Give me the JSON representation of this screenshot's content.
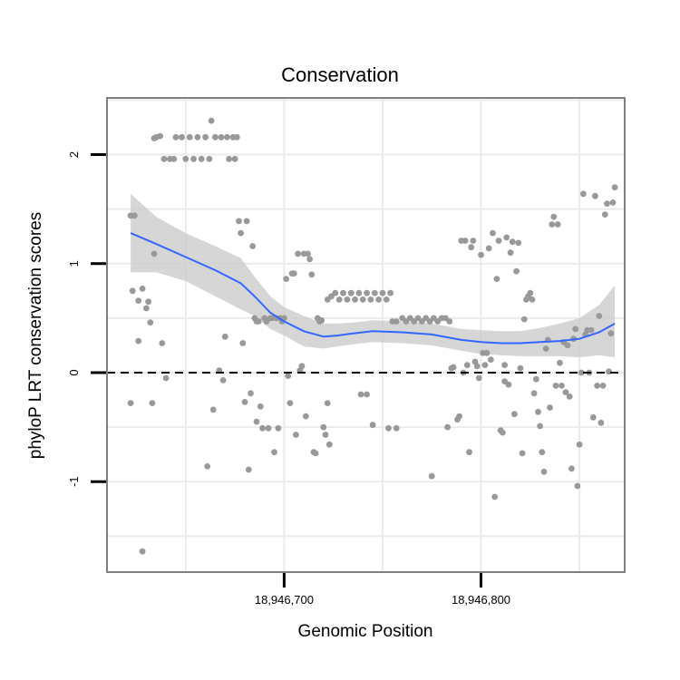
{
  "chart_data": {
    "type": "scatter",
    "title": "Conservation",
    "xlabel": "Genomic Position",
    "ylabel": "phyloP LRT conservation scores",
    "xlim": [
      18946610,
      18946873
    ],
    "ylim": [
      -1.83,
      2.52
    ],
    "x_ticks": [
      18946700,
      18946800
    ],
    "x_tick_labels": [
      "18,946,700",
      "18,946,800"
    ],
    "y_ticks": [
      -1,
      0,
      1,
      2
    ],
    "y_tick_labels": [
      "-1",
      "0",
      "1",
      "2"
    ],
    "reference_line": {
      "y": 0,
      "style": "dashed"
    },
    "grid": true,
    "colors": {
      "points": "#999999",
      "smooth": "#3366FF",
      "ribbon": "#cccccc",
      "frame": "#7f7f7f",
      "grid": "#ebebeb"
    },
    "points": [
      [
        18946622,
        1.44
      ],
      [
        18946624,
        1.44
      ],
      [
        18946622,
        -0.28
      ],
      [
        18946623,
        0.75
      ],
      [
        18946626,
        0.29
      ],
      [
        18946626,
        0.66
      ],
      [
        18946628,
        -1.64
      ],
      [
        18946628,
        0.77
      ],
      [
        18946630,
        0.59
      ],
      [
        18946631,
        0.65
      ],
      [
        18946632,
        0.46
      ],
      [
        18946633,
        -0.28
      ],
      [
        18946634,
        1.09
      ],
      [
        18946634,
        2.15
      ],
      [
        18946635,
        2.16
      ],
      [
        18946637,
        2.17
      ],
      [
        18946638,
        0.27
      ],
      [
        18946639,
        1.96
      ],
      [
        18946640,
        -0.05
      ],
      [
        18946642,
        1.96
      ],
      [
        18946644,
        1.96
      ],
      [
        18946645,
        2.16
      ],
      [
        18946648,
        2.16
      ],
      [
        18946650,
        1.96
      ],
      [
        18946652,
        2.16
      ],
      [
        18946654,
        1.96
      ],
      [
        18946656,
        2.16
      ],
      [
        18946658,
        1.96
      ],
      [
        18946660,
        2.16
      ],
      [
        18946661,
        -0.86
      ],
      [
        18946662,
        1.96
      ],
      [
        18946663,
        2.31
      ],
      [
        18946664,
        -0.34
      ],
      [
        18946665,
        2.16
      ],
      [
        18946667,
        0.02
      ],
      [
        18946668,
        2.16
      ],
      [
        18946669,
        -0.07
      ],
      [
        18946670,
        0.33
      ],
      [
        18946671,
        2.16
      ],
      [
        18946672,
        1.96
      ],
      [
        18946674,
        2.16
      ],
      [
        18946675,
        1.96
      ],
      [
        18946676,
        2.16
      ],
      [
        18946677,
        1.39
      ],
      [
        18946678,
        1.28
      ],
      [
        18946679,
        0.27
      ],
      [
        18946680,
        -0.27
      ],
      [
        18946681,
        1.39
      ],
      [
        18946682,
        -0.89
      ],
      [
        18946683,
        -0.19
      ],
      [
        18946684,
        1.16
      ],
      [
        18946685,
        0.5
      ],
      [
        18946686,
        0.47
      ],
      [
        18946686,
        -0.45
      ],
      [
        18946687,
        0.47
      ],
      [
        18946688,
        -0.31
      ],
      [
        18946689,
        -0.51
      ],
      [
        18946690,
        0.5
      ],
      [
        18946691,
        0.47
      ],
      [
        18946692,
        -0.51
      ],
      [
        18946693,
        0.5
      ],
      [
        18946694,
        0.5
      ],
      [
        18946695,
        -0.73
      ],
      [
        18946696,
        0.5
      ],
      [
        18946697,
        -0.51
      ],
      [
        18946698,
        0.5
      ],
      [
        18946699,
        0.47
      ],
      [
        18946700,
        0.5
      ],
      [
        18946701,
        0.86
      ],
      [
        18946702,
        -0.03
      ],
      [
        18946703,
        -0.28
      ],
      [
        18946704,
        0.91
      ],
      [
        18946705,
        0.91
      ],
      [
        18946706,
        -0.57
      ],
      [
        18946707,
        1.09
      ],
      [
        18946708,
        0.02
      ],
      [
        18946709,
        0.06
      ],
      [
        18946710,
        1.09
      ],
      [
        18946711,
        -0.4
      ],
      [
        18946712,
        1.09
      ],
      [
        18946713,
        1.04
      ],
      [
        18946714,
        0.9
      ],
      [
        18946715,
        -0.73
      ],
      [
        18946716,
        -0.74
      ],
      [
        18946717,
        0.5
      ],
      [
        18946718,
        0.47
      ],
      [
        18946719,
        0.48
      ],
      [
        18946720,
        -0.5
      ],
      [
        18946721,
        -0.57
      ],
      [
        18946722,
        -0.28
      ],
      [
        18946723,
        -0.66
      ],
      [
        18946722,
        0.67
      ],
      [
        18946724,
        0.7
      ],
      [
        18946726,
        0.73
      ],
      [
        18946728,
        0.67
      ],
      [
        18946730,
        0.73
      ],
      [
        18946732,
        0.67
      ],
      [
        18946734,
        0.73
      ],
      [
        18946736,
        0.67
      ],
      [
        18946738,
        0.73
      ],
      [
        18946739,
        -0.2
      ],
      [
        18946740,
        0.67
      ],
      [
        18946742,
        0.73
      ],
      [
        18946742,
        -0.2
      ],
      [
        18946744,
        0.67
      ],
      [
        18946745,
        -0.48
      ],
      [
        18946746,
        0.73
      ],
      [
        18946748,
        0.67
      ],
      [
        18946750,
        0.73
      ],
      [
        18946752,
        0.67
      ],
      [
        18946753,
        -0.51
      ],
      [
        18946754,
        0.73
      ],
      [
        18946755,
        0.47
      ],
      [
        18946757,
        -0.51
      ],
      [
        18946757,
        0.47
      ],
      [
        18946760,
        0.5
      ],
      [
        18946762,
        0.47
      ],
      [
        18946764,
        0.5
      ],
      [
        18946766,
        0.47
      ],
      [
        18946768,
        0.5
      ],
      [
        18946770,
        0.47
      ],
      [
        18946772,
        0.5
      ],
      [
        18946774,
        0.47
      ],
      [
        18946775,
        -0.95
      ],
      [
        18946776,
        0.5
      ],
      [
        18946778,
        0.47
      ],
      [
        18946780,
        0.5
      ],
      [
        18946782,
        0.5
      ],
      [
        18946783,
        -0.5
      ],
      [
        18946784,
        0.47
      ],
      [
        18946785,
        0.04
      ],
      [
        18946786,
        0.05
      ],
      [
        18946788,
        -0.43
      ],
      [
        18946789,
        -0.4
      ],
      [
        18946790,
        1.21
      ],
      [
        18946791,
        0.0
      ],
      [
        18946792,
        1.21
      ],
      [
        18946793,
        0.07
      ],
      [
        18946794,
        -0.73
      ],
      [
        18946795,
        1.15
      ],
      [
        18946796,
        1.21
      ],
      [
        18946797,
        0.1
      ],
      [
        18946798,
        0.06
      ],
      [
        18946799,
        -0.05
      ],
      [
        18946800,
        1.08
      ],
      [
        18946801,
        0.18
      ],
      [
        18946802,
        0.07
      ],
      [
        18946803,
        0.18
      ],
      [
        18946804,
        1.14
      ],
      [
        18946805,
        0.12
      ],
      [
        18946806,
        1.28
      ],
      [
        18946807,
        -1.14
      ],
      [
        18946808,
        0.86
      ],
      [
        18946809,
        1.21
      ],
      [
        18946810,
        -0.53
      ],
      [
        18946811,
        -0.55
      ],
      [
        18946812,
        -0.08
      ],
      [
        18946812,
        0.07
      ],
      [
        18946813,
        1.24
      ],
      [
        18946814,
        -0.11
      ],
      [
        18946815,
        1.1
      ],
      [
        18946816,
        1.2
      ],
      [
        18946817,
        -0.38
      ],
      [
        18946818,
        0.93
      ],
      [
        18946819,
        1.19
      ],
      [
        18946820,
        0.04
      ],
      [
        18946821,
        -0.74
      ],
      [
        18946822,
        0.49
      ],
      [
        18946823,
        0.67
      ],
      [
        18946824,
        0.7
      ],
      [
        18946825,
        0.73
      ],
      [
        18946826,
        0.67
      ],
      [
        18946827,
        -0.19
      ],
      [
        18946828,
        -0.06
      ],
      [
        18946829,
        -0.36
      ],
      [
        18946830,
        -0.49
      ],
      [
        18946831,
        -0.73
      ],
      [
        18946832,
        -0.91
      ],
      [
        18946833,
        0.22
      ],
      [
        18946834,
        0.3
      ],
      [
        18946835,
        -0.32
      ],
      [
        18946836,
        1.36
      ],
      [
        18946837,
        1.43
      ],
      [
        18946838,
        -0.12
      ],
      [
        18946839,
        1.36
      ],
      [
        18946840,
        0.09
      ],
      [
        18946841,
        -0.12
      ],
      [
        18946842,
        0.28
      ],
      [
        18946843,
        -0.18
      ],
      [
        18946844,
        0.25
      ],
      [
        18946845,
        -0.22
      ],
      [
        18946846,
        -0.88
      ],
      [
        18946847,
        0.31
      ],
      [
        18946848,
        0.4
      ],
      [
        18946849,
        -1.04
      ],
      [
        18946850,
        -0.66
      ],
      [
        18946851,
        0.0
      ],
      [
        18946852,
        1.64
      ],
      [
        18946853,
        0.35
      ],
      [
        18946854,
        0.39
      ],
      [
        18946855,
        0.0
      ],
      [
        18946856,
        0.39
      ],
      [
        18946857,
        -0.41
      ],
      [
        18946858,
        1.62
      ],
      [
        18946859,
        -0.12
      ],
      [
        18946860,
        0.52
      ],
      [
        18946861,
        -0.46
      ],
      [
        18946862,
        -0.12
      ],
      [
        18946863,
        1.45
      ],
      [
        18946864,
        1.55
      ],
      [
        18946865,
        0.01
      ],
      [
        18946866,
        0.36
      ],
      [
        18946867,
        1.56
      ],
      [
        18946868,
        1.7
      ]
    ],
    "smooth": {
      "x": [
        18946622,
        18946635,
        18946650,
        18946665,
        18946678,
        18946685,
        18946693,
        18946700,
        18946710,
        18946720,
        18946727,
        18946735,
        18946745,
        18946760,
        18946775,
        18946790,
        18946800,
        18946810,
        18946820,
        18946830,
        18946840,
        18946850,
        18946860,
        18946868
      ],
      "y": [
        1.28,
        1.18,
        1.06,
        0.94,
        0.82,
        0.7,
        0.55,
        0.47,
        0.38,
        0.33,
        0.34,
        0.36,
        0.38,
        0.37,
        0.35,
        0.3,
        0.28,
        0.27,
        0.27,
        0.28,
        0.29,
        0.31,
        0.37,
        0.45
      ],
      "lower": [
        0.92,
        0.92,
        0.84,
        0.7,
        0.58,
        0.52,
        0.4,
        0.34,
        0.24,
        0.22,
        0.24,
        0.26,
        0.28,
        0.27,
        0.25,
        0.2,
        0.17,
        0.16,
        0.15,
        0.15,
        0.15,
        0.14,
        0.16,
        0.14
      ],
      "upper": [
        1.64,
        1.43,
        1.28,
        1.16,
        1.05,
        0.88,
        0.7,
        0.6,
        0.52,
        0.45,
        0.45,
        0.46,
        0.48,
        0.47,
        0.45,
        0.4,
        0.39,
        0.38,
        0.38,
        0.41,
        0.45,
        0.5,
        0.62,
        0.8
      ]
    }
  }
}
